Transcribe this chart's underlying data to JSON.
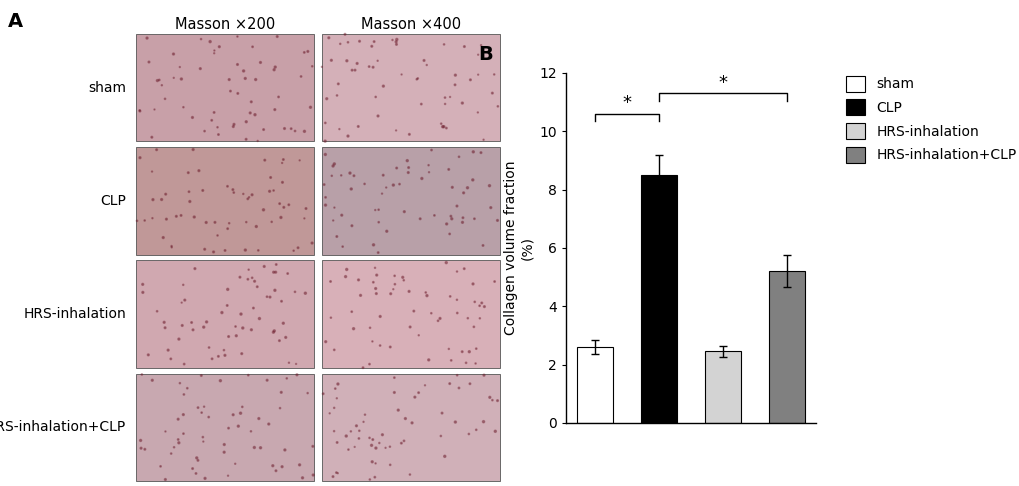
{
  "panel_b": {
    "categories": [
      "sham",
      "CLP",
      "HRS-inhalation",
      "HRS-inhalation+CLP"
    ],
    "values": [
      2.6,
      8.5,
      2.45,
      5.2
    ],
    "errors": [
      0.25,
      0.7,
      0.2,
      0.55
    ],
    "bar_colors": [
      "#ffffff",
      "#000000",
      "#d3d3d3",
      "#808080"
    ],
    "bar_edge_colors": [
      "#000000",
      "#000000",
      "#000000",
      "#000000"
    ],
    "ylabel": "Collagen volume fraction\n(%)",
    "ylim": [
      0,
      12
    ],
    "yticks": [
      0,
      2,
      4,
      6,
      8,
      10,
      12
    ],
    "bar_width": 0.55,
    "legend_labels": [
      "sham",
      "CLP",
      "HRS-inhalation",
      "HRS-inhalation+CLP"
    ],
    "legend_colors": [
      "#ffffff",
      "#000000",
      "#d3d3d3",
      "#808080"
    ],
    "sig_label": "*",
    "panel_label": "B",
    "background_color": "#ffffff",
    "font_size": 11,
    "title_font_size": 14
  },
  "panel_a": {
    "panel_label": "A",
    "row_labels": [
      "sham",
      "CLP",
      "HRS-inhalation",
      "HRS-inhalation+CLP"
    ],
    "col_labels": [
      "Masson ×200",
      "Masson ×400"
    ],
    "img_colors": [
      [
        "#c8a0a8",
        "#d4b0b8"
      ],
      [
        "#c09898",
        "#b8a0a8"
      ],
      [
        "#d0a8b0",
        "#d8b0b8"
      ],
      [
        "#c8a8b0",
        "#d0b0b8"
      ]
    ]
  }
}
